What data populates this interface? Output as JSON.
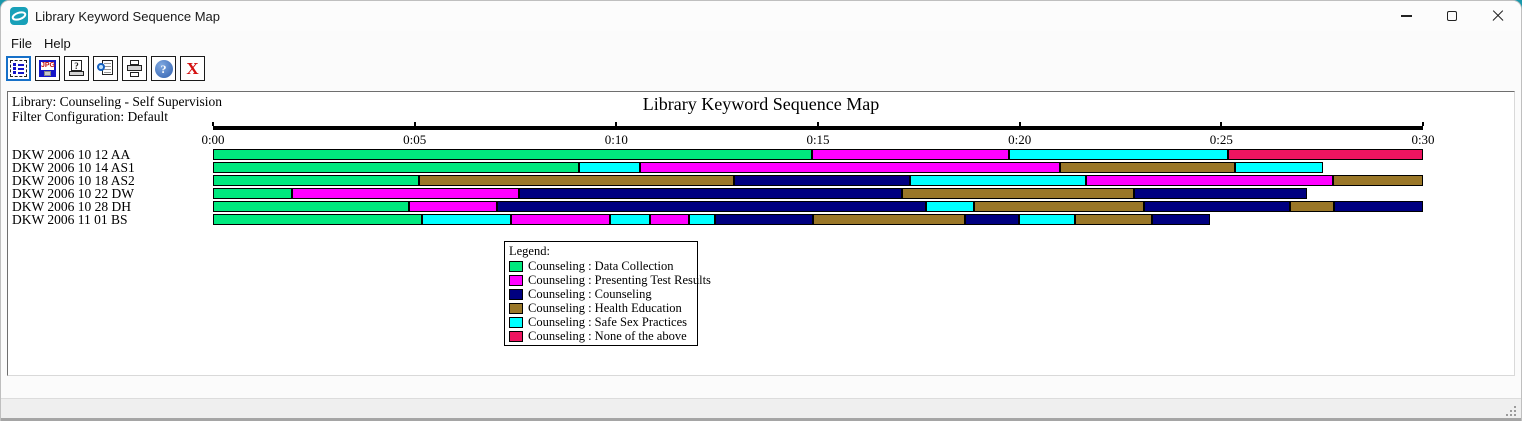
{
  "window": {
    "title": "Library Keyword Sequence Map"
  },
  "menu": {
    "items": [
      "File",
      "Help"
    ]
  },
  "toolbar": {
    "buttons": [
      {
        "name": "keyword-list",
        "selected": true
      },
      {
        "name": "save-as-jpg",
        "icon_text": "JPG"
      },
      {
        "name": "print-setup",
        "icon_text": "?"
      },
      {
        "name": "view-report"
      },
      {
        "name": "print"
      },
      {
        "name": "help",
        "icon_text": "?"
      },
      {
        "name": "exit",
        "icon_text": "X"
      }
    ]
  },
  "header": {
    "library_label": "Library: Counseling - Self Supervision",
    "filter_label": "Filter Configuration: Default"
  },
  "chart_data": {
    "type": "timeline",
    "title": "Library Keyword Sequence Map",
    "x_axis": {
      "ticks": [
        "0:00",
        "0:05",
        "0:10",
        "0:15",
        "0:20",
        "0:25",
        "0:30"
      ],
      "range_minutes": [
        0,
        30
      ]
    },
    "legend": {
      "title": "Legend:",
      "entries": [
        {
          "key": "dc",
          "label": "Counseling : Data Collection",
          "color": "#00E97E"
        },
        {
          "key": "ptr",
          "label": "Counseling : Presenting Test Results",
          "color": "#FF00FF"
        },
        {
          "key": "c",
          "label": "Counseling : Counseling",
          "color": "#000080"
        },
        {
          "key": "he",
          "label": "Counseling : Health Education",
          "color": "#9A7728"
        },
        {
          "key": "ssp",
          "label": "Counseling : Safe Sex Practices",
          "color": "#00FFFF"
        },
        {
          "key": "none",
          "label": "Counseling : None of the above",
          "color": "#EE1460"
        }
      ]
    },
    "rows": [
      {
        "label": "DKW 2006 10 12 AA",
        "segments": [
          {
            "k": "dc",
            "start": 0,
            "end": 14.85
          },
          {
            "k": "ptr",
            "start": 14.85,
            "end": 19.74
          },
          {
            "k": "ssp",
            "start": 19.74,
            "end": 25.17
          },
          {
            "k": "none",
            "start": 25.17,
            "end": 30.0
          }
        ]
      },
      {
        "label": "DKW 2006 10 14 AS1",
        "segments": [
          {
            "k": "dc",
            "start": 0,
            "end": 9.07
          },
          {
            "k": "ssp",
            "start": 9.07,
            "end": 10.59
          },
          {
            "k": "ptr",
            "start": 10.59,
            "end": 21.0
          },
          {
            "k": "he",
            "start": 21.0,
            "end": 25.34
          },
          {
            "k": "ssp",
            "start": 25.34,
            "end": 27.52
          }
        ]
      },
      {
        "label": "DKW 2006 10 18 AS2",
        "segments": [
          {
            "k": "dc",
            "start": 0,
            "end": 5.11
          },
          {
            "k": "he",
            "start": 5.11,
            "end": 12.92
          },
          {
            "k": "c",
            "start": 12.92,
            "end": 17.28
          },
          {
            "k": "ssp",
            "start": 17.28,
            "end": 21.65
          },
          {
            "k": "ptr",
            "start": 21.65,
            "end": 27.77
          },
          {
            "k": "he",
            "start": 27.77,
            "end": 30.0
          }
        ]
      },
      {
        "label": "DKW 2006 10 22 DW",
        "segments": [
          {
            "k": "dc",
            "start": 0,
            "end": 1.96
          },
          {
            "k": "ptr",
            "start": 1.96,
            "end": 7.59
          },
          {
            "k": "c",
            "start": 7.59,
            "end": 17.08
          },
          {
            "k": "he",
            "start": 17.08,
            "end": 22.84
          },
          {
            "k": "c",
            "start": 22.84,
            "end": 27.13
          }
        ]
      },
      {
        "label": "DKW 2006 10 28 DH",
        "segments": [
          {
            "k": "dc",
            "start": 0,
            "end": 4.86
          },
          {
            "k": "ptr",
            "start": 4.86,
            "end": 7.04
          },
          {
            "k": "c",
            "start": 7.04,
            "end": 17.68
          },
          {
            "k": "ssp",
            "start": 17.68,
            "end": 18.87
          },
          {
            "k": "he",
            "start": 18.87,
            "end": 23.09
          },
          {
            "k": "c",
            "start": 23.09,
            "end": 26.71
          },
          {
            "k": "he",
            "start": 26.71,
            "end": 27.8
          },
          {
            "k": "c",
            "start": 27.8,
            "end": 30.0
          }
        ]
      },
      {
        "label": "DKW 2006 11 01 BS",
        "segments": [
          {
            "k": "dc",
            "start": 0,
            "end": 5.18
          },
          {
            "k": "ssp",
            "start": 5.18,
            "end": 7.39
          },
          {
            "k": "ptr",
            "start": 7.39,
            "end": 9.84
          },
          {
            "k": "ssp",
            "start": 9.84,
            "end": 10.84
          },
          {
            "k": "ptr",
            "start": 10.84,
            "end": 11.8
          },
          {
            "k": "ssp",
            "start": 11.8,
            "end": 12.45
          },
          {
            "k": "c",
            "start": 12.45,
            "end": 14.88
          },
          {
            "k": "he",
            "start": 14.88,
            "end": 18.65
          },
          {
            "k": "c",
            "start": 18.65,
            "end": 19.99
          },
          {
            "k": "ssp",
            "start": 19.99,
            "end": 21.38
          },
          {
            "k": "he",
            "start": 21.38,
            "end": 23.29
          },
          {
            "k": "c",
            "start": 23.29,
            "end": 24.72
          }
        ]
      }
    ]
  }
}
